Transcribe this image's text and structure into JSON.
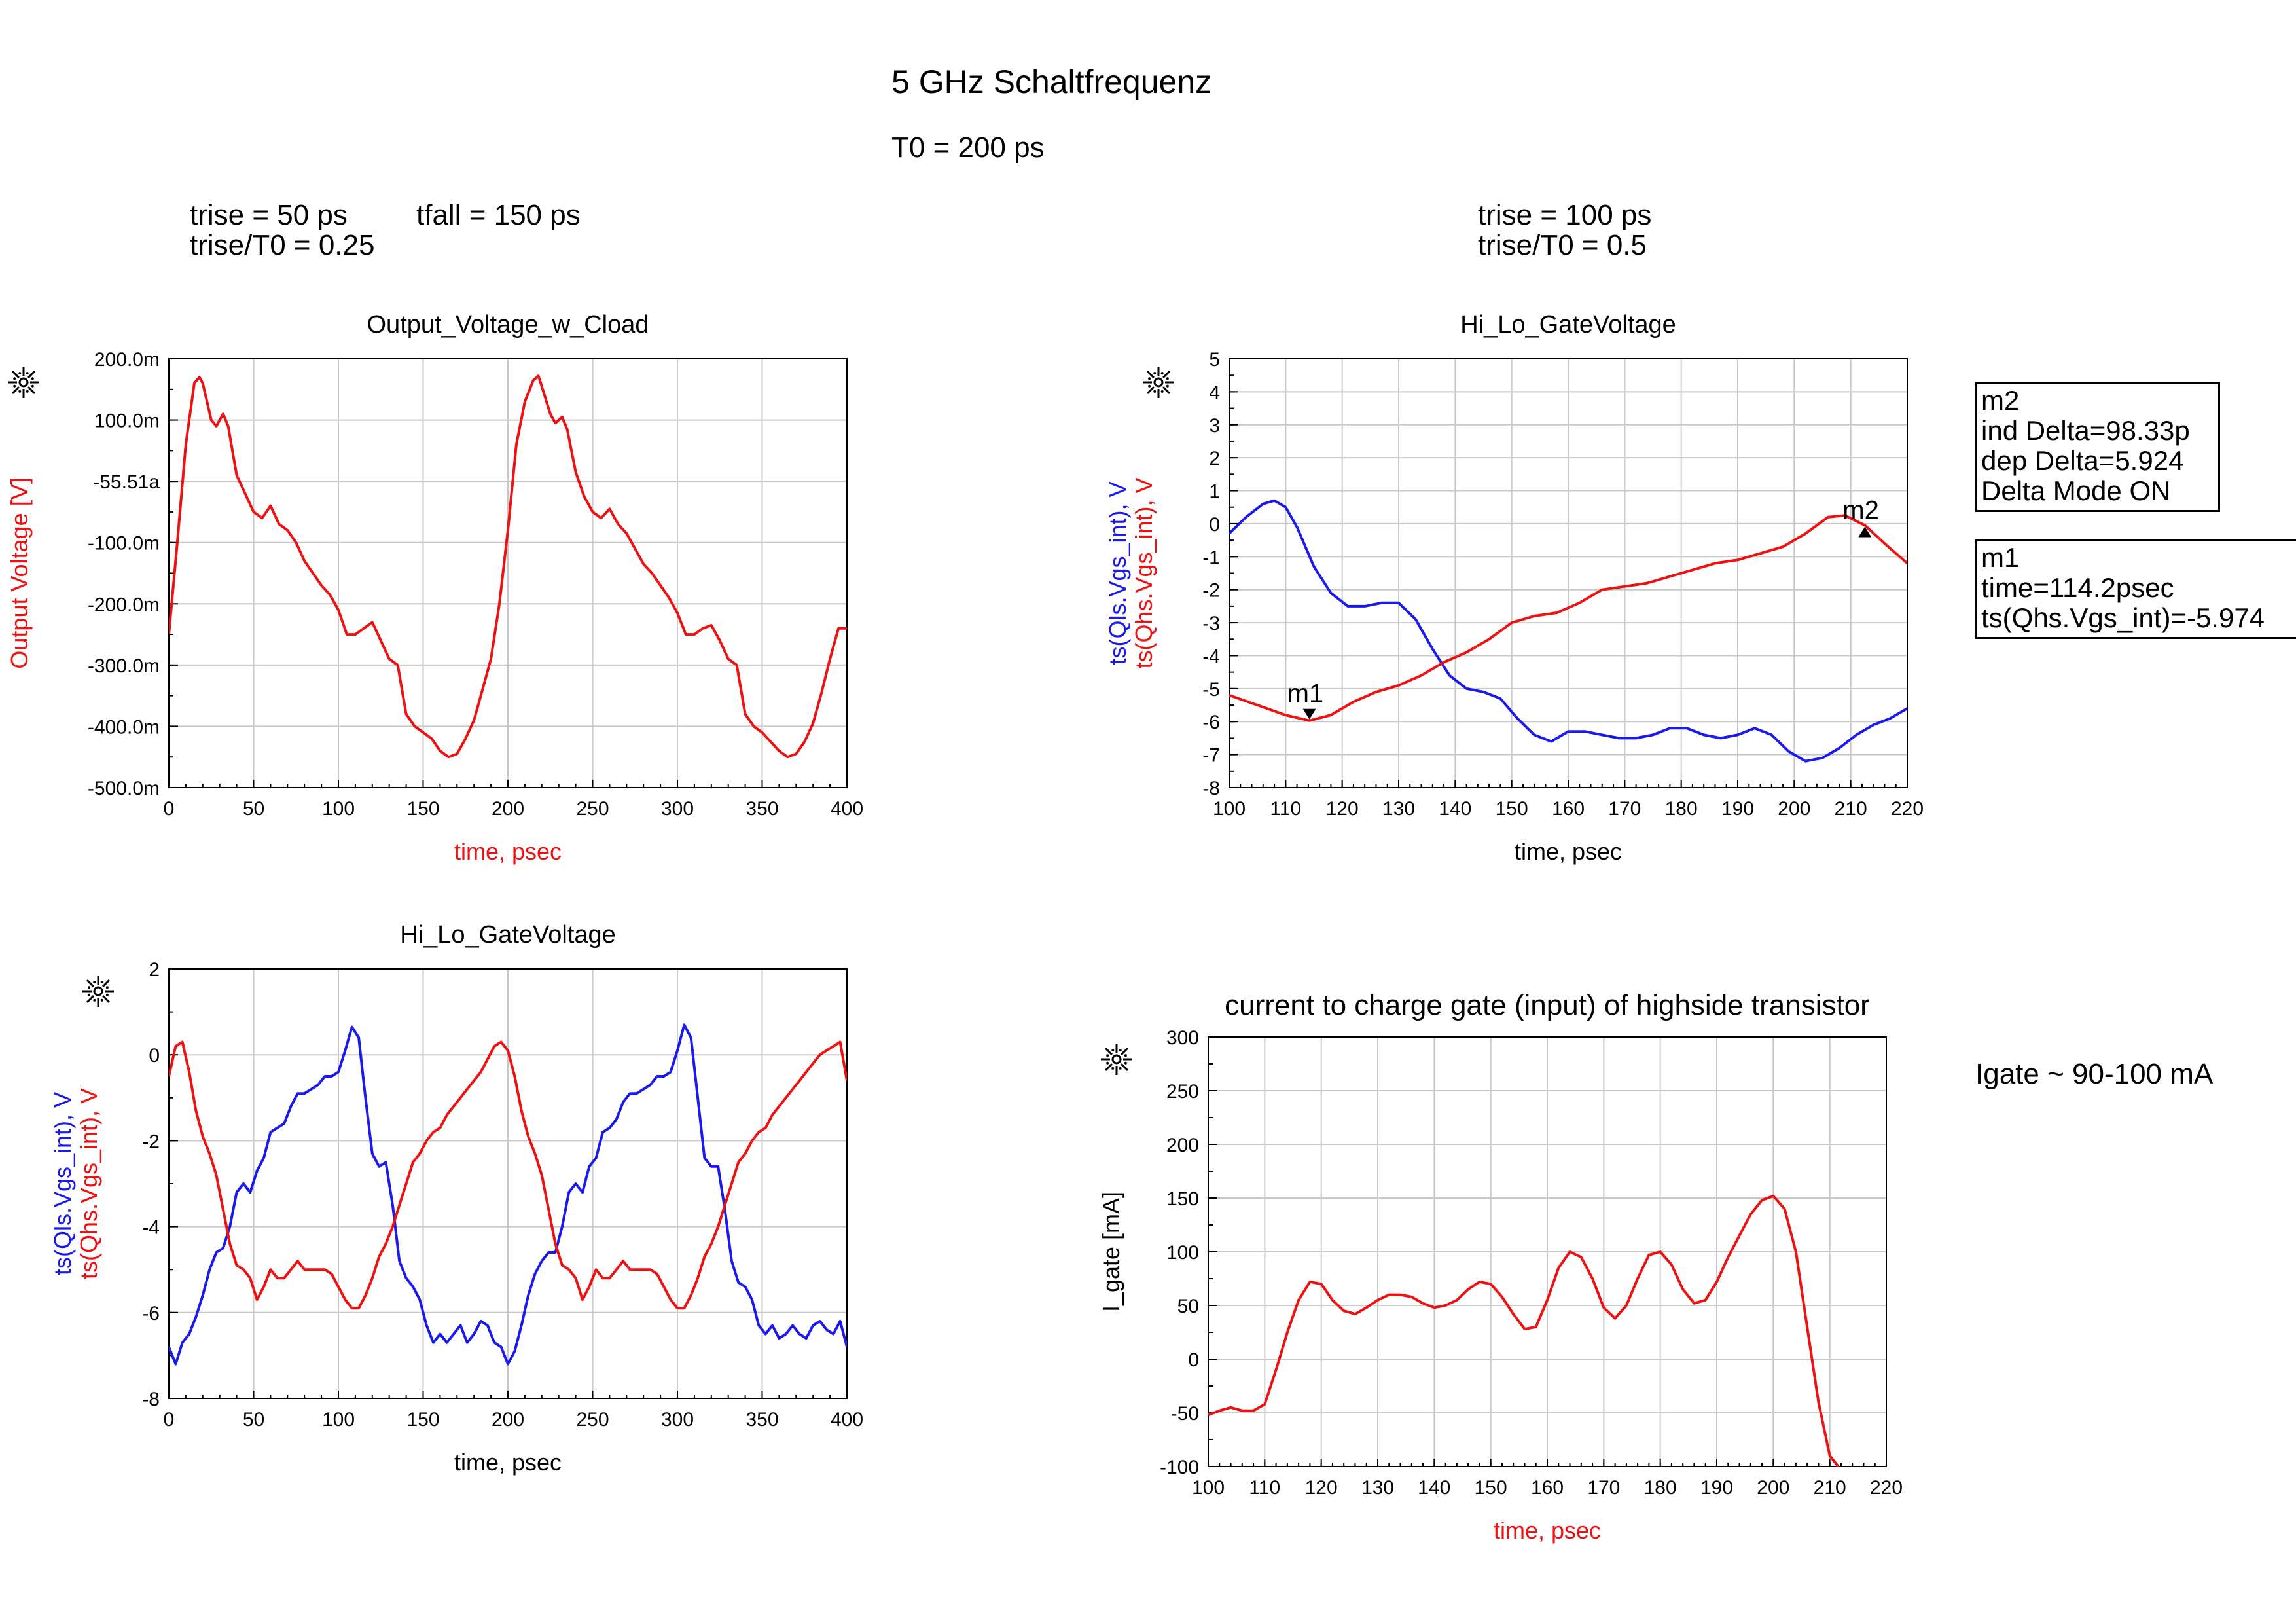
{
  "header": {
    "title": "5 GHz Schaltfrequenz",
    "period": "T0 = 200 ps"
  },
  "left_params": {
    "trise": "trise = 50 ps",
    "tfall": "tfall = 150 ps",
    "ratio": "trise/T0 = 0.25"
  },
  "right_params": {
    "trise": "trise = 100 ps",
    "ratio": "trise/T0 = 0.5"
  },
  "markers": {
    "m2": [
      "m2",
      "ind Delta=98.33p",
      "dep Delta=5.924",
      "Delta Mode ON"
    ],
    "m1": [
      "m1",
      "time=114.2psec",
      "ts(Qhs.Vgs_int)=-5.974"
    ]
  },
  "note": "Igate ~ 90-100 mA",
  "colors": {
    "red": "#ee1111",
    "blue": "#1a1aee",
    "grid": "#c8c8c8"
  },
  "chart_data": [
    {
      "type": "line",
      "title": "Output_Voltage_w_Cload",
      "xlabel": "time, psec",
      "ylabel": "Output Voltage [V]",
      "xlim": [
        0,
        400
      ],
      "ylim": [
        -500,
        200
      ],
      "x_ticks": [
        "0",
        "50",
        "100",
        "150",
        "200",
        "250",
        "300",
        "350",
        "400"
      ],
      "y_ticks": [
        "200.0m",
        "100.0m",
        "-55.51a",
        "-100.0m",
        "-200.0m",
        "-300.0m",
        "-400.0m",
        "-500.0m"
      ],
      "grid": true,
      "series": [
        {
          "color": "red",
          "x": [
            0,
            5,
            10,
            15,
            18,
            20,
            25,
            28,
            32,
            35,
            40,
            45,
            50,
            55,
            60,
            65,
            70,
            75,
            80,
            85,
            90,
            95,
            100,
            105,
            110,
            115,
            120,
            125,
            130,
            135,
            140,
            145,
            150,
            155,
            160,
            165,
            170,
            175,
            180,
            185,
            190,
            195,
            200,
            205,
            210,
            215,
            218,
            220,
            225,
            228,
            232,
            235,
            240,
            245,
            250,
            255,
            260,
            265,
            270,
            275,
            280,
            285,
            290,
            295,
            300,
            305,
            310,
            315,
            320,
            325,
            330,
            335,
            340,
            345,
            350,
            355,
            360,
            365,
            370,
            375,
            380,
            385,
            390,
            395,
            400
          ],
          "values": [
            -250,
            -100,
            60,
            160,
            170,
            160,
            100,
            90,
            110,
            90,
            10,
            -20,
            -50,
            -60,
            -40,
            -70,
            -80,
            -100,
            -130,
            -150,
            -170,
            -185,
            -210,
            -250,
            -250,
            -240,
            -230,
            -260,
            -290,
            -300,
            -380,
            -400,
            -410,
            -420,
            -440,
            -450,
            -445,
            -420,
            -390,
            -340,
            -290,
            -200,
            -80,
            60,
            130,
            165,
            172,
            155,
            110,
            95,
            105,
            85,
            15,
            -25,
            -50,
            -60,
            -45,
            -70,
            -85,
            -110,
            -135,
            -150,
            -170,
            -190,
            -215,
            -250,
            -250,
            -240,
            -235,
            -260,
            -290,
            -300,
            -380,
            -400,
            -410,
            -425,
            -440,
            -450,
            -445,
            -425,
            -395,
            -345,
            -290,
            -240,
            -240
          ]
        }
      ]
    },
    {
      "type": "line",
      "title": "Hi_Lo_GateVoltage",
      "xlabel": "time, psec",
      "ylabel": "ts(Qls.Vgs_int), V  ts(Qhs.Vgs_int), V",
      "xlim": [
        100,
        220
      ],
      "ylim": [
        -8,
        5
      ],
      "x_ticks": [
        "100",
        "110",
        "120",
        "130",
        "140",
        "150",
        "160",
        "170",
        "180",
        "190",
        "200",
        "210",
        "220"
      ],
      "y_ticks": [
        "5",
        "4",
        "3",
        "2",
        "1",
        "0",
        "-1",
        "-2",
        "-3",
        "-4",
        "-5",
        "-6",
        "-7",
        "-8"
      ],
      "grid": true,
      "series": [
        {
          "name": "ts(Qls.Vgs_int), V",
          "color": "blue",
          "x": [
            100,
            103,
            106,
            108,
            110,
            112,
            115,
            118,
            121,
            124,
            127,
            130,
            133,
            136,
            139,
            142,
            145,
            148,
            151,
            154,
            157,
            160,
            163,
            166,
            169,
            172,
            175,
            178,
            181,
            184,
            187,
            190,
            193,
            196,
            199,
            202,
            205,
            208,
            211,
            214,
            217,
            220
          ],
          "values": [
            -0.3,
            0.2,
            0.6,
            0.7,
            0.5,
            -0.1,
            -1.3,
            -2.1,
            -2.5,
            -2.5,
            -2.4,
            -2.4,
            -2.9,
            -3.8,
            -4.6,
            -5,
            -5.1,
            -5.3,
            -5.9,
            -6.4,
            -6.6,
            -6.3,
            -6.3,
            -6.4,
            -6.5,
            -6.5,
            -6.4,
            -6.2,
            -6.2,
            -6.4,
            -6.5,
            -6.4,
            -6.2,
            -6.4,
            -6.9,
            -7.2,
            -7.1,
            -6.8,
            -6.4,
            -6.1,
            -5.9,
            -5.6
          ]
        },
        {
          "name": "ts(Qhs.Vgs_int), V",
          "color": "red",
          "x": [
            100,
            105,
            110,
            114.2,
            118,
            122,
            126,
            130,
            134,
            138,
            142,
            146,
            150,
            154,
            158,
            162,
            166,
            170,
            174,
            178,
            182,
            186,
            190,
            194,
            198,
            202,
            206,
            209,
            212.5,
            216,
            220
          ],
          "values": [
            -5.2,
            -5.5,
            -5.8,
            -5.97,
            -5.8,
            -5.4,
            -5.1,
            -4.9,
            -4.6,
            -4.2,
            -3.9,
            -3.5,
            -3,
            -2.8,
            -2.7,
            -2.4,
            -2,
            -1.9,
            -1.8,
            -1.6,
            -1.4,
            -1.2,
            -1.1,
            -0.9,
            -0.7,
            -0.3,
            0.2,
            0.25,
            -0.05,
            -0.6,
            -1.2
          ]
        }
      ]
    },
    {
      "type": "line",
      "title": "Hi_Lo_GateVoltage",
      "xlabel": "time, psec",
      "ylabel": "ts(Qls.Vgs_int), V  ts(Qhs.Vgs_int), V",
      "xlim": [
        0,
        400
      ],
      "ylim": [
        -8,
        2
      ],
      "x_ticks": [
        "0",
        "50",
        "100",
        "150",
        "200",
        "250",
        "300",
        "350",
        "400"
      ],
      "y_ticks": [
        "2",
        "0",
        "-2",
        "-4",
        "-6",
        "-8"
      ],
      "grid": true,
      "series": [
        {
          "name": "ts(Qls.Vgs_int), V",
          "color": "blue",
          "x": [
            0,
            4,
            8,
            12,
            16,
            20,
            24,
            28,
            32,
            36,
            40,
            44,
            48,
            52,
            56,
            60,
            64,
            68,
            72,
            76,
            80,
            84,
            88,
            92,
            96,
            100,
            104,
            108,
            112,
            116,
            120,
            124,
            128,
            132,
            136,
            140,
            144,
            148,
            152,
            156,
            160,
            164,
            168,
            172,
            176,
            180,
            184,
            188,
            192,
            196,
            200,
            204,
            208,
            212,
            216,
            220,
            224,
            228,
            232,
            236,
            240,
            244,
            248,
            252,
            256,
            260,
            264,
            268,
            272,
            276,
            280,
            284,
            288,
            292,
            296,
            300,
            304,
            308,
            312,
            316,
            320,
            324,
            328,
            332,
            336,
            340,
            344,
            348,
            352,
            356,
            360,
            364,
            368,
            372,
            376,
            380,
            384,
            388,
            392,
            396,
            400
          ],
          "values": [
            -6.8,
            -7.2,
            -6.7,
            -6.5,
            -6.1,
            -5.6,
            -5.0,
            -4.6,
            -4.5,
            -4.0,
            -3.2,
            -3.0,
            -3.2,
            -2.7,
            -2.4,
            -1.8,
            -1.7,
            -1.6,
            -1.2,
            -0.9,
            -0.9,
            -0.8,
            -0.7,
            -0.5,
            -0.5,
            -0.4,
            0.1,
            0.65,
            0.4,
            -1.0,
            -2.3,
            -2.6,
            -2.5,
            -3.5,
            -4.8,
            -5.2,
            -5.4,
            -5.7,
            -6.3,
            -6.7,
            -6.5,
            -6.7,
            -6.5,
            -6.3,
            -6.7,
            -6.5,
            -6.2,
            -6.3,
            -6.7,
            -6.8,
            -7.2,
            -6.9,
            -6.3,
            -5.6,
            -5.1,
            -4.8,
            -4.6,
            -4.6,
            -4.0,
            -3.2,
            -3.0,
            -3.2,
            -2.6,
            -2.4,
            -1.8,
            -1.7,
            -1.5,
            -1.1,
            -0.9,
            -0.9,
            -0.8,
            -0.7,
            -0.5,
            -0.5,
            -0.4,
            0.1,
            0.7,
            0.4,
            -1.0,
            -2.4,
            -2.6,
            -2.6,
            -3.6,
            -4.8,
            -5.3,
            -5.4,
            -5.7,
            -6.3,
            -6.5,
            -6.3,
            -6.6,
            -6.5,
            -6.3,
            -6.5,
            -6.6,
            -6.3,
            -6.2,
            -6.4,
            -6.5,
            -6.2,
            -6.8
          ]
        },
        {
          "name": "ts(Qhs.Vgs_int), V",
          "color": "red",
          "x": [
            0,
            4,
            8,
            12,
            16,
            20,
            24,
            28,
            32,
            36,
            40,
            44,
            48,
            52,
            56,
            60,
            64,
            68,
            72,
            76,
            80,
            84,
            88,
            92,
            96,
            100,
            104,
            108,
            112,
            116,
            120,
            124,
            128,
            132,
            136,
            140,
            144,
            148,
            152,
            156,
            160,
            164,
            168,
            172,
            176,
            180,
            184,
            188,
            192,
            196,
            200,
            204,
            208,
            212,
            216,
            220,
            224,
            228,
            232,
            236,
            240,
            244,
            248,
            252,
            256,
            260,
            264,
            268,
            272,
            276,
            280,
            284,
            288,
            292,
            296,
            300,
            304,
            308,
            312,
            316,
            320,
            324,
            328,
            332,
            336,
            340,
            344,
            348,
            352,
            356,
            360,
            364,
            368,
            372,
            376,
            380,
            384,
            388,
            392,
            396,
            400
          ],
          "values": [
            -0.5,
            0.2,
            0.3,
            -0.4,
            -1.3,
            -1.9,
            -2.3,
            -2.8,
            -3.6,
            -4.4,
            -4.9,
            -5.0,
            -5.2,
            -5.7,
            -5.4,
            -5.0,
            -5.2,
            -5.2,
            -5.0,
            -4.8,
            -5.0,
            -5.0,
            -5.0,
            -5.0,
            -5.1,
            -5.4,
            -5.7,
            -5.9,
            -5.9,
            -5.6,
            -5.2,
            -4.7,
            -4.4,
            -4.0,
            -3.5,
            -3.0,
            -2.5,
            -2.3,
            -2.0,
            -1.8,
            -1.7,
            -1.4,
            -1.2,
            -1.0,
            -0.8,
            -0.6,
            -0.4,
            -0.1,
            0.2,
            0.3,
            0.1,
            -0.5,
            -1.3,
            -1.9,
            -2.3,
            -2.8,
            -3.6,
            -4.4,
            -4.9,
            -5.0,
            -5.2,
            -5.7,
            -5.4,
            -5.0,
            -5.2,
            -5.2,
            -5.0,
            -4.8,
            -5.0,
            -5.0,
            -5.0,
            -5.0,
            -5.1,
            -5.4,
            -5.7,
            -5.9,
            -5.9,
            -5.6,
            -5.2,
            -4.7,
            -4.4,
            -4.0,
            -3.5,
            -3.0,
            -2.5,
            -2.3,
            -2.0,
            -1.8,
            -1.7,
            -1.4,
            -1.2,
            -1.0,
            -0.8,
            -0.6,
            -0.4,
            -0.2,
            0.0,
            0.1,
            0.2,
            0.3,
            -0.6
          ]
        }
      ]
    },
    {
      "type": "line",
      "title": "current to charge gate (input) of highside transistor",
      "xlabel": "time, psec",
      "ylabel": "I_gate [mA]",
      "xlim": [
        100,
        220
      ],
      "ylim": [
        -100,
        300
      ],
      "x_ticks": [
        "100",
        "110",
        "120",
        "130",
        "140",
        "150",
        "160",
        "170",
        "180",
        "190",
        "200",
        "210",
        "220"
      ],
      "y_ticks": [
        "300",
        "250",
        "200",
        "150",
        "100",
        "50",
        "0",
        "-50",
        "-100"
      ],
      "grid": true,
      "series": [
        {
          "color": "red",
          "x": [
            100,
            102,
            104,
            106,
            108,
            110,
            112,
            114,
            116,
            118,
            120,
            122,
            124,
            126,
            128,
            130,
            132,
            134,
            136,
            138,
            140,
            142,
            144,
            146,
            148,
            150,
            152,
            154,
            156,
            158,
            160,
            162,
            164,
            166,
            168,
            170,
            172,
            174,
            176,
            178,
            180,
            182,
            184,
            186,
            188,
            190,
            192,
            194,
            196,
            198,
            200,
            202,
            204,
            206,
            208,
            210,
            211.5
          ],
          "values": [
            -52,
            -48,
            -45,
            -48,
            -48,
            -42,
            -10,
            25,
            55,
            72,
            70,
            55,
            45,
            42,
            48,
            55,
            60,
            60,
            58,
            52,
            48,
            50,
            55,
            65,
            72,
            70,
            58,
            42,
            28,
            30,
            55,
            85,
            100,
            95,
            75,
            48,
            38,
            50,
            75,
            97,
            100,
            88,
            65,
            52,
            55,
            72,
            95,
            115,
            135,
            148,
            152,
            140,
            100,
            30,
            -40,
            -90,
            -100
          ]
        }
      ]
    }
  ]
}
